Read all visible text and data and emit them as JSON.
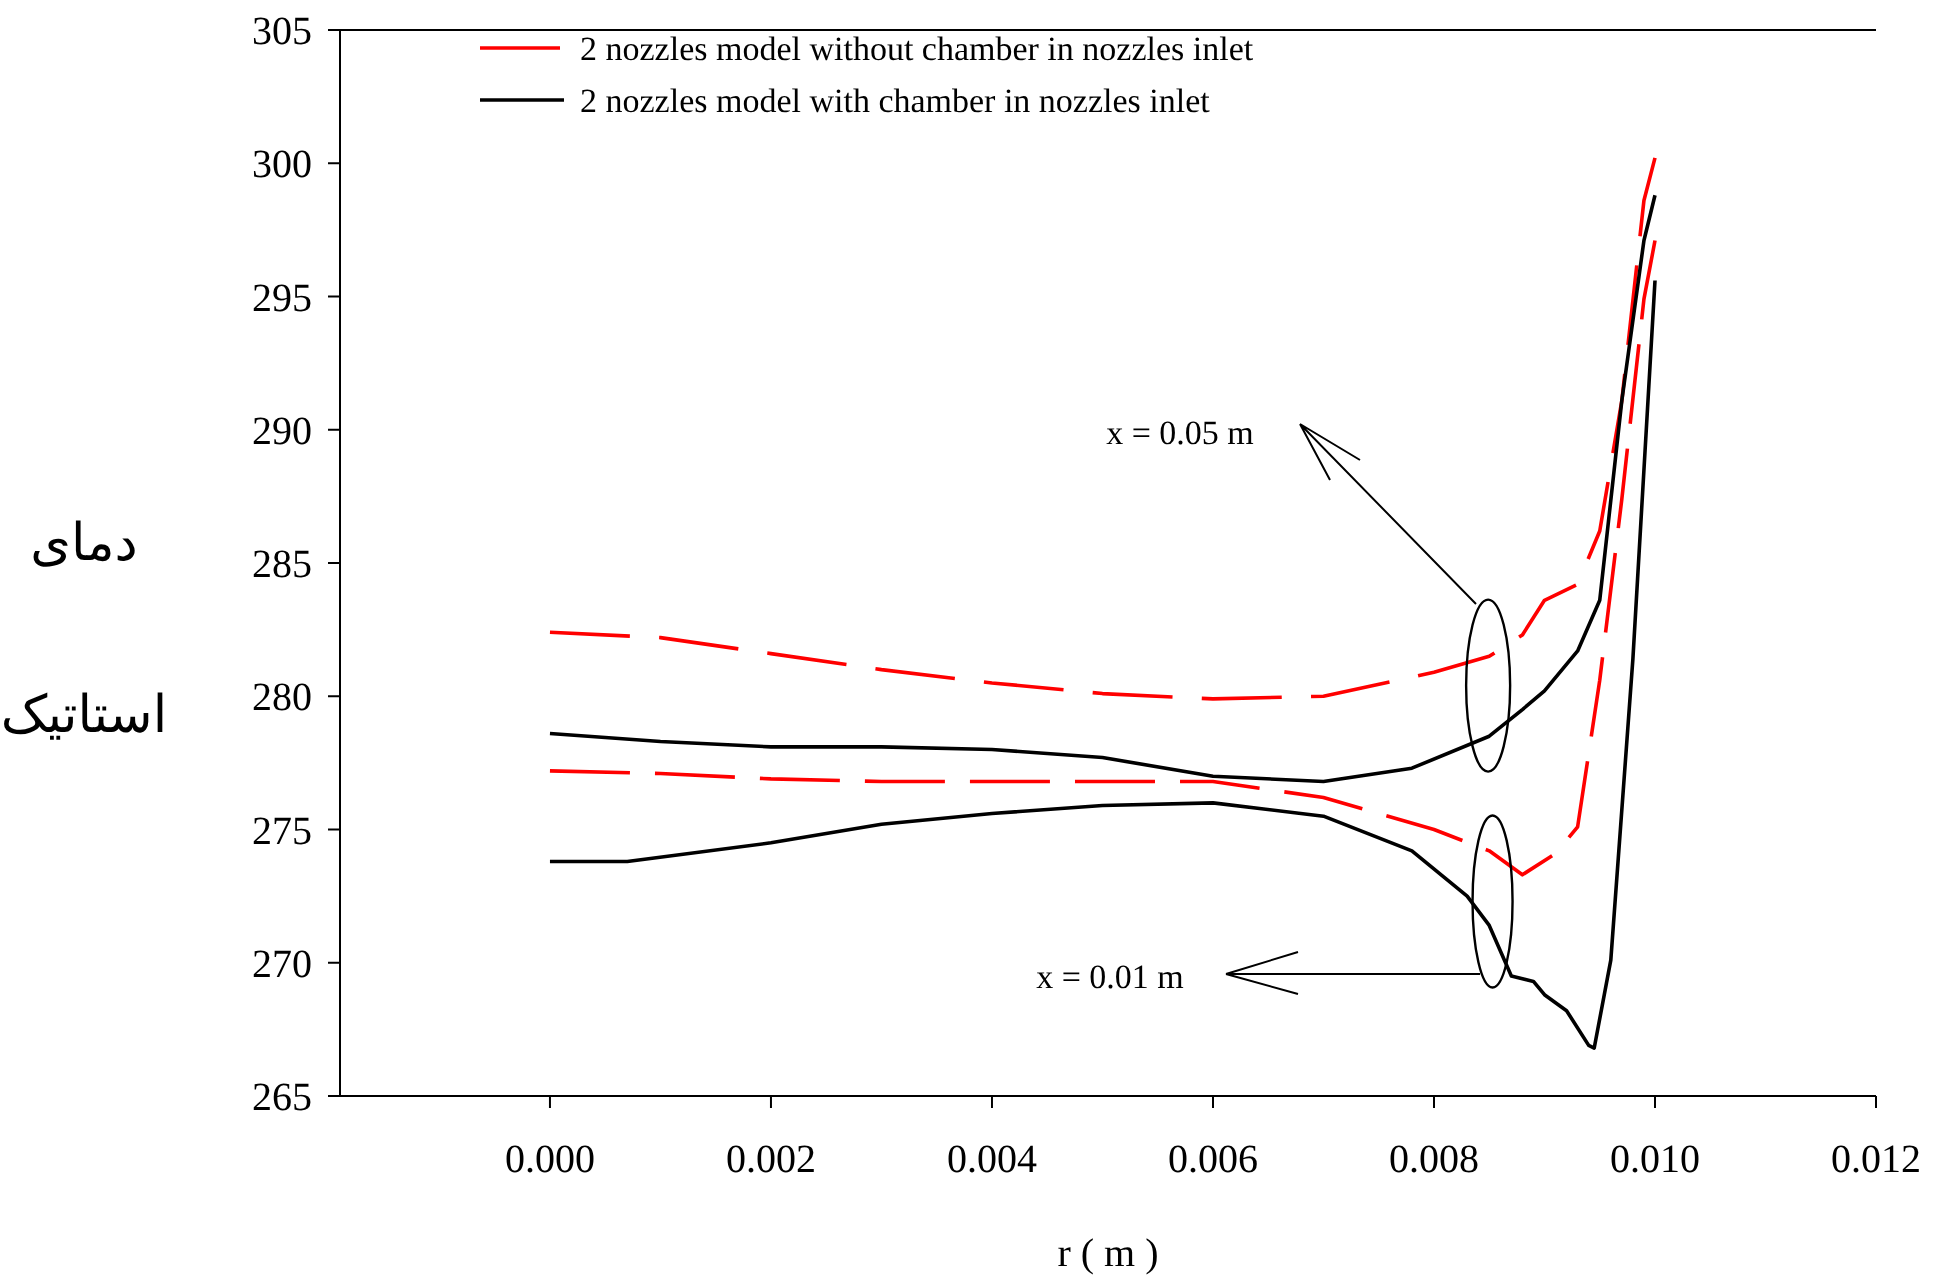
{
  "chart_data": {
    "type": "line",
    "xlabel": "r ( m )",
    "ylabel": "دمای استاتیک",
    "xlim": [
      -0.0019,
      0.012
    ],
    "ylim": [
      265,
      305
    ],
    "xticks": [
      {
        "value": 0,
        "label": "0.000"
      },
      {
        "value": 0.002,
        "label": "0.002"
      },
      {
        "value": 0.004,
        "label": "0.004"
      },
      {
        "value": 0.006,
        "label": "0.006"
      },
      {
        "value": 0.008,
        "label": "0.008"
      },
      {
        "value": 0.01,
        "label": "0.010"
      },
      {
        "value": 0.012,
        "label": "0.012"
      }
    ],
    "yticks": [
      265,
      270,
      275,
      280,
      285,
      290,
      295,
      300,
      305
    ],
    "grid": false,
    "legend": "top",
    "marker": "none",
    "series": [
      {
        "name": "2 nozzles model without chamber in nozzles inlet",
        "color": "#ff0000",
        "line_style": "dashed",
        "x": [
          0,
          0.001,
          0.002,
          0.003,
          0.004,
          0.005,
          0.006,
          0.007,
          0.008,
          0.0085,
          0.0088,
          0.009,
          0.0093,
          0.0095,
          0.0097,
          0.0099,
          0.01
        ],
        "values": [
          282.4,
          282.2,
          281.6,
          281.0,
          280.5,
          280.1,
          279.9,
          280.0,
          280.9,
          281.5,
          282.3,
          283.6,
          284.2,
          286.2,
          291.1,
          298.6,
          300.2
        ]
      },
      {
        "name": "2 nozzles model with chamber in nozzles inlet",
        "color": "#000000",
        "line_style": "solid",
        "x": [
          0,
          0.001,
          0.002,
          0.003,
          0.004,
          0.005,
          0.006,
          0.007,
          0.0078,
          0.0085,
          0.0088,
          0.009,
          0.0093,
          0.0095,
          0.0097,
          0.0099,
          0.01
        ],
        "values": [
          278.6,
          278.3,
          278.1,
          278.1,
          278.0,
          277.7,
          277.0,
          276.8,
          277.3,
          278.5,
          279.5,
          280.2,
          281.7,
          283.6,
          291.1,
          297.1,
          298.8
        ]
      },
      {
        "color": "#ff0000",
        "line_style": "dashed",
        "x": [
          0,
          0.001,
          0.002,
          0.003,
          0.004,
          0.005,
          0.006,
          0.007,
          0.008,
          0.0085,
          0.0088,
          0.0091,
          0.0093,
          0.0095,
          0.0097,
          0.0099,
          0.01
        ],
        "values": [
          277.2,
          277.1,
          276.9,
          276.8,
          276.8,
          276.8,
          276.8,
          276.2,
          275.0,
          274.2,
          273.3,
          274.1,
          275.1,
          280.6,
          287.4,
          294.9,
          297.1
        ]
      },
      {
        "color": "#000000",
        "line_style": "solid",
        "x": [
          0,
          0.0007,
          0.002,
          0.003,
          0.004,
          0.005,
          0.006,
          0.007,
          0.0078,
          0.0083,
          0.0085,
          0.0087,
          0.0089,
          0.009,
          0.0092,
          0.0094,
          0.00945,
          0.0096,
          0.0098,
          0.01
        ],
        "values": [
          273.8,
          273.8,
          274.5,
          275.2,
          275.6,
          275.9,
          276.0,
          275.5,
          274.2,
          272.5,
          271.4,
          269.5,
          269.3,
          268.8,
          268.2,
          266.9,
          266.8,
          270.1,
          281.4,
          295.6
        ]
      }
    ],
    "annotations": [
      "x = 0.05 m",
      "x = 0.01 m"
    ]
  }
}
